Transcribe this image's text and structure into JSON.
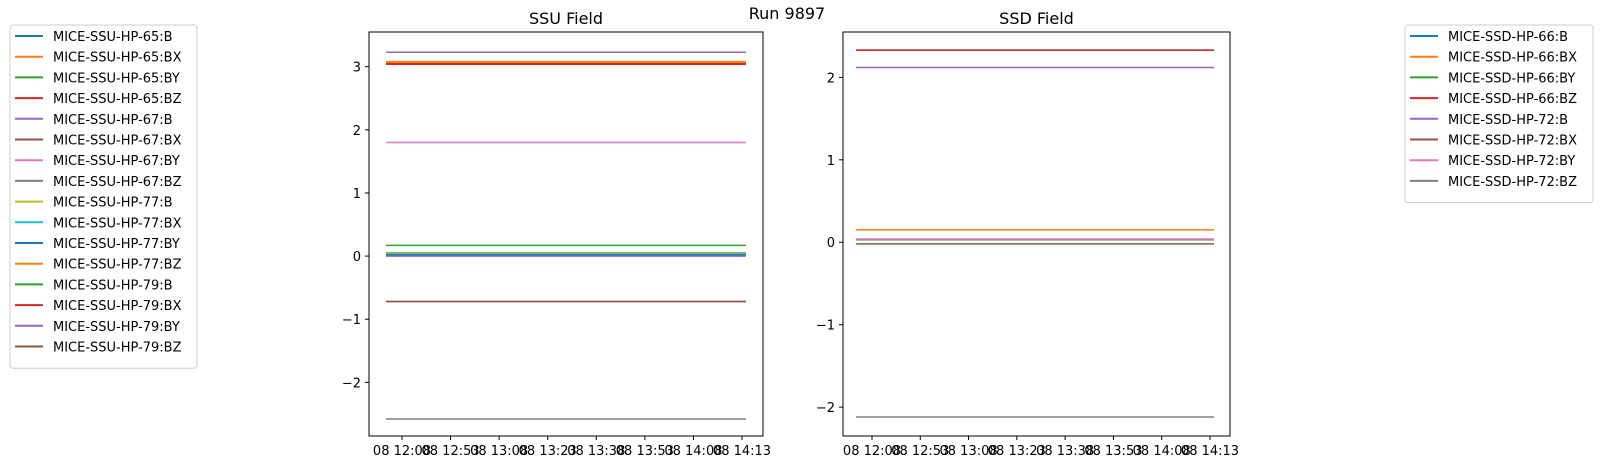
{
  "suptitle": "Run 9897",
  "chart_data": [
    {
      "type": "line",
      "title": "SSU Field",
      "xlabel": "",
      "ylabel": "",
      "ylim": [
        -2.85,
        3.55
      ],
      "yticks": [
        -2,
        -1,
        0,
        1,
        2,
        3
      ],
      "ytick_labels": [
        "−2",
        "−1",
        "0",
        "1",
        "2",
        "3"
      ],
      "xtick_labels": [
        "08 12:08",
        "08 12:53",
        "08 13:08",
        "08 13:23",
        "08 13:38",
        "08 13:53",
        "08 14:08",
        "08 14:13"
      ],
      "legend_position": "left",
      "series": [
        {
          "name": "MICE-SSU-HP-65:B",
          "color": "#1f77b4",
          "value": 3.06
        },
        {
          "name": "MICE-SSU-HP-65:BX",
          "color": "#ff7f0e",
          "value": 3.08
        },
        {
          "name": "MICE-SSU-HP-65:BY",
          "color": "#2ca02c",
          "value": 0.05
        },
        {
          "name": "MICE-SSU-HP-65:BZ",
          "color": "#d62728",
          "value": 3.05
        },
        {
          "name": "MICE-SSU-HP-67:B",
          "color": "#9467bd",
          "value": 3.23
        },
        {
          "name": "MICE-SSU-HP-67:BX",
          "color": "#8c564b",
          "value": -0.72
        },
        {
          "name": "MICE-SSU-HP-67:BY",
          "color": "#e377c2",
          "value": 1.8
        },
        {
          "name": "MICE-SSU-HP-67:BZ",
          "color": "#7f7f7f",
          "value": -2.58
        },
        {
          "name": "MICE-SSU-HP-77:B",
          "color": "#bcbd22",
          "value": 0.04
        },
        {
          "name": "MICE-SSU-HP-77:BX",
          "color": "#17becf",
          "value": 0.03
        },
        {
          "name": "MICE-SSU-HP-77:BY",
          "color": "#1f77b4",
          "value": 0.02
        },
        {
          "name": "MICE-SSU-HP-77:BZ",
          "color": "#ff7f0e",
          "value": 3.07
        },
        {
          "name": "MICE-SSU-HP-79:B",
          "color": "#2ca02c",
          "value": 0.17
        },
        {
          "name": "MICE-SSU-HP-79:BX",
          "color": "#d62728",
          "value": 3.04
        },
        {
          "name": "MICE-SSU-HP-79:BY",
          "color": "#9467bd",
          "value": 0.0
        },
        {
          "name": "MICE-SSU-HP-79:BZ",
          "color": "#8c564b",
          "value": -0.72
        }
      ]
    },
    {
      "type": "line",
      "title": "SSD Field",
      "xlabel": "",
      "ylabel": "",
      "ylim": [
        -2.35,
        2.55
      ],
      "yticks": [
        -2,
        -1,
        0,
        1,
        2
      ],
      "ytick_labels": [
        "−2",
        "−1",
        "0",
        "1",
        "2"
      ],
      "xtick_labels": [
        "08 12:08",
        "08 12:53",
        "08 13:08",
        "08 13:23",
        "08 13:38",
        "08 13:53",
        "08 14:08",
        "08 14:13"
      ],
      "legend_position": "right",
      "series": [
        {
          "name": "MICE-SSD-HP-66:B",
          "color": "#1f77b4",
          "value": 2.33
        },
        {
          "name": "MICE-SSD-HP-66:BX",
          "color": "#ff7f0e",
          "value": 0.15
        },
        {
          "name": "MICE-SSD-HP-66:BY",
          "color": "#2ca02c",
          "value": 0.03
        },
        {
          "name": "MICE-SSD-HP-66:BZ",
          "color": "#d62728",
          "value": 2.33
        },
        {
          "name": "MICE-SSD-HP-72:B",
          "color": "#9467bd",
          "value": 2.12
        },
        {
          "name": "MICE-SSD-HP-72:BX",
          "color": "#8c564b",
          "value": -0.02
        },
        {
          "name": "MICE-SSD-HP-72:BY",
          "color": "#e377c2",
          "value": 0.04
        },
        {
          "name": "MICE-SSD-HP-72:BZ",
          "color": "#7f7f7f",
          "value": -2.12
        }
      ]
    }
  ]
}
